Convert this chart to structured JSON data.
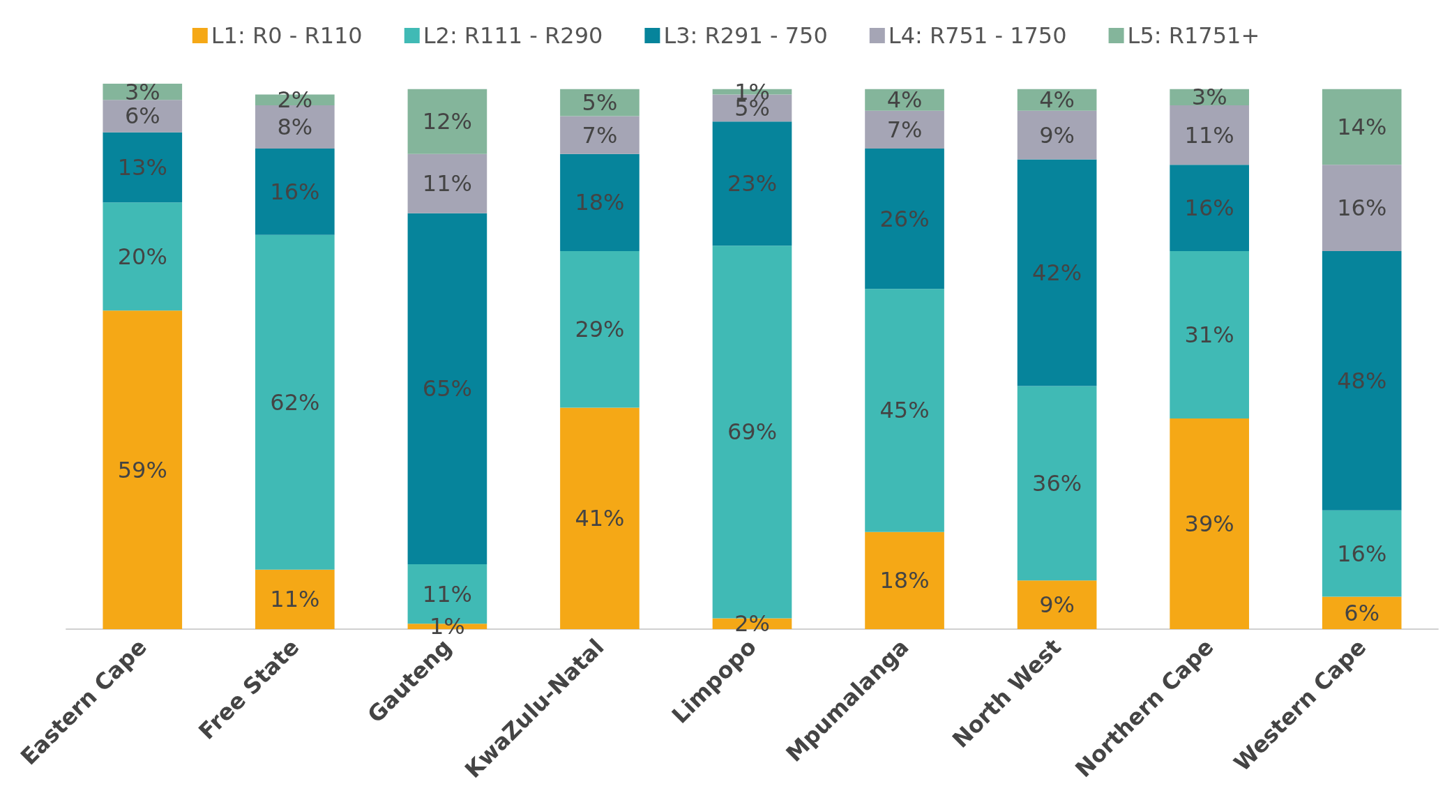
{
  "chart_data": {
    "type": "bar",
    "stacked": true,
    "legend": "top",
    "tick_labels": "x",
    "categories": [
      "Eastern Cape",
      "Free State",
      "Gauteng",
      "KwaZulu-Natal",
      "Limpopo",
      "Mpumalanga",
      "North West",
      "Northern Cape",
      "Western Cape"
    ],
    "series": [
      {
        "name": "L1: R0 - R110",
        "color": "#f5a816",
        "values": [
          59,
          11,
          1,
          41,
          2,
          18,
          9,
          39,
          6
        ],
        "value_labels": [
          "59%",
          "11%",
          "1%",
          "41%",
          "2%",
          "18%",
          "9%",
          "39%",
          "6%"
        ]
      },
      {
        "name": "L2: R111 - R290",
        "color": "#40bab5",
        "values": [
          20,
          62,
          11,
          29,
          69,
          45,
          36,
          31,
          16
        ],
        "value_labels": [
          "20%",
          "62%",
          "11%",
          "29%",
          "69%",
          "45%",
          "36%",
          "31%",
          "16%"
        ]
      },
      {
        "name": "L3: R291 - 750",
        "color": "#06849b",
        "values": [
          13,
          16,
          65,
          18,
          23,
          26,
          42,
          16,
          48
        ],
        "value_labels": [
          "13%",
          "16%",
          "65%",
          "18%",
          "23%",
          "26%",
          "42%",
          "16%",
          "48%"
        ]
      },
      {
        "name": "L4: R751 - 1750",
        "color": "#a5a5b5",
        "values": [
          6,
          8,
          11,
          7,
          5,
          7,
          9,
          11,
          16
        ],
        "value_labels": [
          "6%",
          "8%",
          "11%",
          "7%",
          "5%",
          "7%",
          "9%",
          "11%",
          "16%"
        ]
      },
      {
        "name": "L5: R1751+",
        "color": "#84b59b",
        "values": [
          3,
          2,
          12,
          5,
          1,
          4,
          4,
          3,
          14
        ],
        "value_labels": [
          "3%",
          "2%",
          "12%",
          "5%",
          "1%",
          "4%",
          "4%",
          "3%",
          "14%"
        ]
      }
    ]
  }
}
